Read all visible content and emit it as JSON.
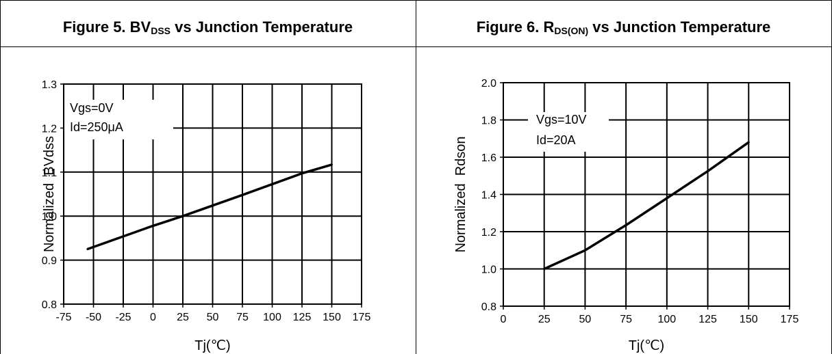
{
  "panels": [
    {
      "title_prefix": "Figure 5. BV",
      "title_sub": "DSS",
      "title_suffix": " vs Junction Temperature"
    },
    {
      "title_prefix": "Figure 6. R",
      "title_sub": "DS(ON)",
      "title_suffix": " vs Junction Temperature"
    }
  ],
  "chart_data": [
    {
      "type": "line",
      "title": "Figure 5. BVDSS vs Junction Temperature",
      "xlabel": "Tj(℃)",
      "ylabel": "Normalized  BVdss",
      "xlim": [
        -75,
        175
      ],
      "ylim": [
        0.8,
        1.3
      ],
      "x_ticks": [
        -75,
        -50,
        -25,
        0,
        25,
        50,
        75,
        100,
        125,
        150,
        175
      ],
      "y_ticks": [
        0.8,
        0.9,
        1.0,
        1.1,
        1.2,
        1.3
      ],
      "x_tick_labels": [
        "-75",
        "-50",
        "-25",
        "0",
        "25",
        "50",
        "75",
        "100",
        "125",
        "150",
        "175"
      ],
      "y_tick_labels": [
        "0.8",
        "0.9",
        "1.0",
        "1.1",
        "1.2",
        "1.3"
      ],
      "grid": true,
      "annotations": [
        "Vgs=0V",
        "Id=250μA"
      ],
      "series": [
        {
          "x": [
            -55,
            0,
            25,
            75,
            125,
            150
          ],
          "y": [
            0.925,
            0.978,
            1.0,
            1.048,
            1.097,
            1.117
          ]
        }
      ]
    },
    {
      "type": "line",
      "title": "Figure 6. RDS(ON) vs Junction Temperature",
      "xlabel": "Tj(℃)",
      "ylabel": "Normalized  Rdson",
      "xlim": [
        0,
        175
      ],
      "ylim": [
        0.8,
        2.0
      ],
      "x_ticks": [
        0,
        25,
        50,
        75,
        100,
        125,
        150,
        175
      ],
      "y_ticks": [
        0.8,
        1.0,
        1.2,
        1.4,
        1.6,
        1.8,
        2.0
      ],
      "x_tick_labels": [
        "0",
        "25",
        "50",
        "75",
        "100",
        "125",
        "150",
        "175"
      ],
      "y_tick_labels": [
        "0.8",
        "1.0",
        "1.2",
        "1.4",
        "1.6",
        "1.8",
        "2.0"
      ],
      "grid": true,
      "annotations": [
        "Vgs=10V",
        "Id=20A"
      ],
      "series": [
        {
          "x": [
            25,
            50,
            75,
            100,
            125,
            150
          ],
          "y": [
            1.0,
            1.1,
            1.235,
            1.38,
            1.525,
            1.68
          ]
        }
      ]
    }
  ]
}
